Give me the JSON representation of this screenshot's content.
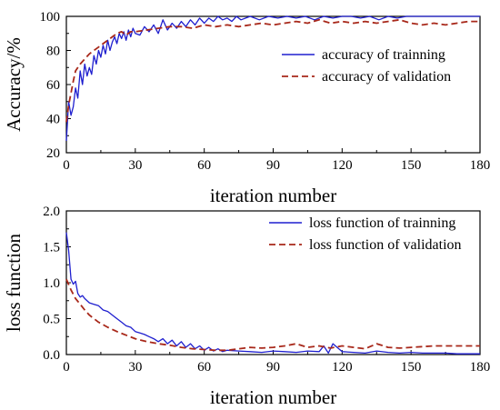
{
  "colors": {
    "train": "#1f1fcf",
    "val": "#a8281a",
    "axis": "#000000"
  },
  "chart_data": [
    {
      "type": "line",
      "title": "",
      "xlabel": "iteration number",
      "ylabel": "Accuracy/%",
      "xlim": [
        0,
        180
      ],
      "ylim": [
        20,
        100
      ],
      "xticks": [
        0,
        30,
        60,
        90,
        120,
        150,
        180
      ],
      "yticks": [
        20,
        40,
        60,
        80,
        100
      ],
      "legend_position": "center-right",
      "series": [
        {
          "name": "accuracy of trainning",
          "style": "solid",
          "x": [
            0,
            1,
            2,
            3,
            4,
            5,
            6,
            7,
            8,
            9,
            10,
            11,
            12,
            13,
            14,
            15,
            16,
            17,
            18,
            19,
            20,
            21,
            22,
            23,
            24,
            25,
            26,
            27,
            28,
            29,
            30,
            32,
            34,
            36,
            38,
            40,
            42,
            44,
            46,
            48,
            50,
            52,
            54,
            56,
            58,
            60,
            62,
            64,
            66,
            68,
            70,
            72,
            74,
            76,
            78,
            80,
            84,
            88,
            92,
            96,
            100,
            104,
            108,
            112,
            116,
            120,
            124,
            128,
            132,
            136,
            140,
            144,
            148,
            150,
            155,
            160,
            165,
            170,
            175,
            180
          ],
          "y": [
            27,
            50,
            42,
            47,
            58,
            52,
            68,
            60,
            72,
            65,
            70,
            66,
            77,
            72,
            80,
            76,
            83,
            78,
            86,
            80,
            85,
            88,
            84,
            90,
            87,
            91,
            86,
            92,
            88,
            93,
            90,
            89,
            94,
            91,
            95,
            90,
            98,
            92,
            96,
            93,
            97,
            94,
            98,
            95,
            99,
            96,
            99,
            97,
            100,
            98,
            99,
            97,
            100,
            98,
            99,
            100,
            98,
            100,
            99,
            100,
            99,
            100,
            98,
            100,
            99,
            100,
            100,
            99,
            100,
            98,
            100,
            99,
            100,
            100,
            100,
            100,
            100,
            100,
            100,
            100
          ]
        },
        {
          "name": "accuracy of validation",
          "style": "dashed",
          "x": [
            0,
            1,
            2,
            3,
            4,
            5,
            6,
            8,
            10,
            12,
            14,
            16,
            18,
            20,
            22,
            24,
            26,
            28,
            30,
            35,
            40,
            45,
            50,
            55,
            60,
            65,
            70,
            75,
            80,
            85,
            90,
            95,
            100,
            105,
            110,
            115,
            120,
            125,
            130,
            135,
            140,
            145,
            150,
            155,
            160,
            165,
            170,
            175,
            180
          ],
          "y": [
            38,
            48,
            55,
            62,
            68,
            70,
            72,
            75,
            78,
            80,
            82,
            84,
            86,
            88,
            90,
            91,
            89,
            91,
            91,
            92,
            93,
            94,
            94,
            93,
            95,
            94,
            95,
            94,
            95,
            96,
            95,
            96,
            97,
            96,
            98,
            96,
            97,
            96,
            97,
            96,
            97,
            98,
            96,
            95,
            96,
            95,
            96,
            97,
            97
          ]
        }
      ]
    },
    {
      "type": "line",
      "title": "",
      "xlabel": "iteration number",
      "ylabel": "loss function",
      "xlim": [
        0,
        180
      ],
      "ylim": [
        0,
        2.0
      ],
      "xticks": [
        0,
        30,
        60,
        90,
        120,
        150,
        180
      ],
      "yticks": [
        0.0,
        0.5,
        1.0,
        1.5,
        2.0
      ],
      "legend_position": "top-right",
      "series": [
        {
          "name": "loss function of trainning",
          "style": "solid",
          "x": [
            0,
            1,
            2,
            3,
            4,
            5,
            6,
            7,
            8,
            10,
            12,
            14,
            16,
            18,
            20,
            22,
            24,
            26,
            28,
            30,
            32,
            34,
            36,
            38,
            40,
            42,
            44,
            46,
            48,
            50,
            52,
            54,
            56,
            58,
            60,
            62,
            64,
            66,
            68,
            70,
            75,
            80,
            85,
            90,
            95,
            100,
            105,
            110,
            112,
            114,
            116,
            120,
            125,
            130,
            135,
            140,
            145,
            150,
            155,
            160,
            165,
            170,
            175,
            180
          ],
          "y": [
            1.7,
            1.45,
            1.05,
            0.98,
            1.02,
            0.85,
            0.8,
            0.82,
            0.78,
            0.72,
            0.7,
            0.68,
            0.62,
            0.6,
            0.55,
            0.5,
            0.45,
            0.4,
            0.38,
            0.32,
            0.3,
            0.28,
            0.25,
            0.22,
            0.18,
            0.22,
            0.15,
            0.2,
            0.12,
            0.18,
            0.1,
            0.15,
            0.08,
            0.12,
            0.06,
            0.1,
            0.05,
            0.08,
            0.04,
            0.06,
            0.05,
            0.04,
            0.03,
            0.05,
            0.04,
            0.03,
            0.05,
            0.04,
            0.12,
            0.02,
            0.15,
            0.04,
            0.03,
            0.02,
            0.05,
            0.03,
            0.02,
            0.03,
            0.02,
            0.02,
            0.02,
            0.01,
            0.01,
            0.01
          ]
        },
        {
          "name": "loss function of validation",
          "style": "dashed",
          "x": [
            0,
            2,
            4,
            6,
            8,
            10,
            14,
            18,
            22,
            26,
            30,
            35,
            40,
            45,
            50,
            55,
            60,
            65,
            70,
            75,
            80,
            85,
            90,
            95,
            100,
            105,
            110,
            115,
            120,
            125,
            130,
            135,
            140,
            145,
            150,
            155,
            160,
            165,
            170,
            175,
            180
          ],
          "y": [
            1.05,
            0.9,
            0.78,
            0.7,
            0.62,
            0.55,
            0.45,
            0.38,
            0.32,
            0.27,
            0.22,
            0.18,
            0.15,
            0.13,
            0.1,
            0.08,
            0.07,
            0.06,
            0.06,
            0.08,
            0.1,
            0.09,
            0.1,
            0.12,
            0.15,
            0.1,
            0.12,
            0.09,
            0.12,
            0.1,
            0.08,
            0.15,
            0.1,
            0.09,
            0.1,
            0.11,
            0.12,
            0.12,
            0.12,
            0.12,
            0.12
          ]
        }
      ]
    }
  ]
}
